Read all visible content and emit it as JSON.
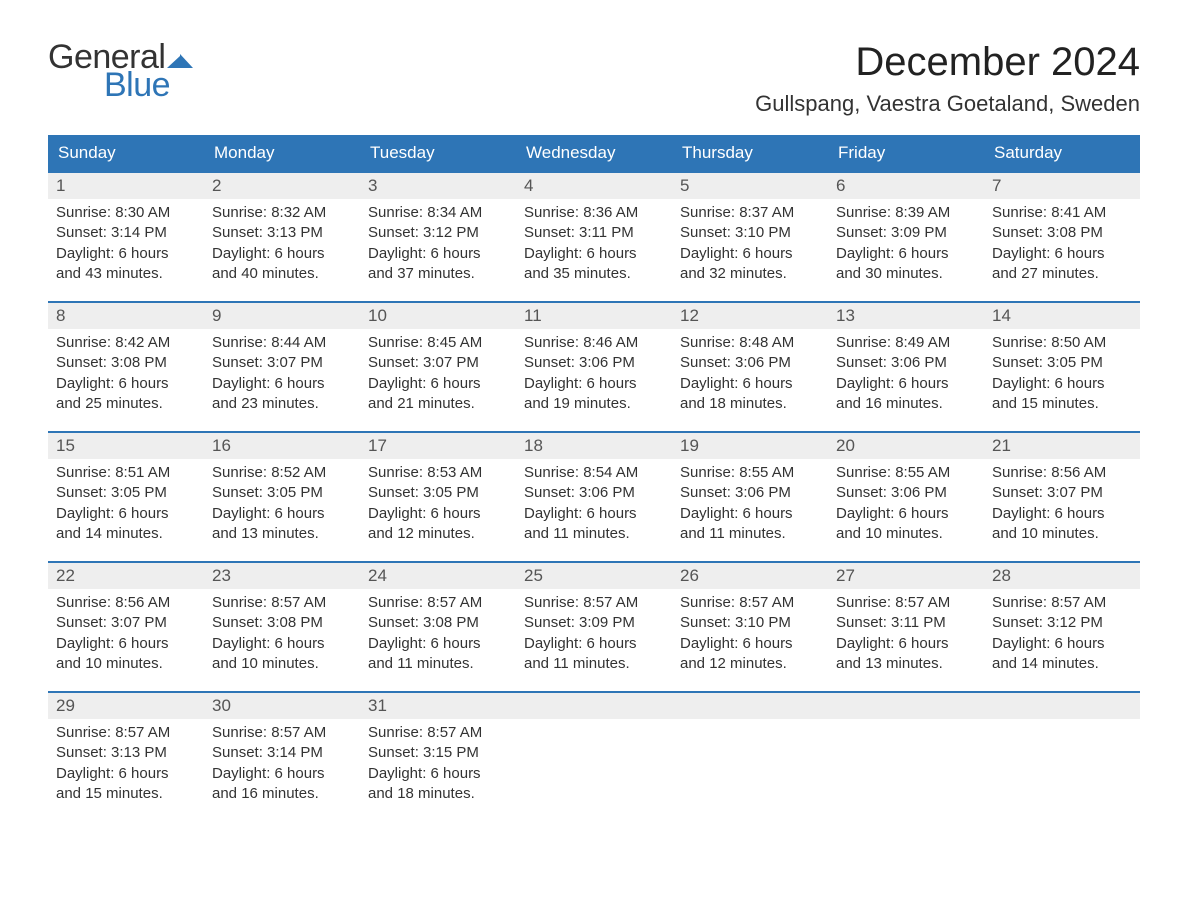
{
  "logo": {
    "text_general": "General",
    "text_blue": "Blue",
    "flag_color": "#2e75b6"
  },
  "title": "December 2024",
  "location": "Gullspang, Vaestra Goetaland, Sweden",
  "colors": {
    "header_bg": "#2e75b6",
    "header_text": "#ffffff",
    "daynum_bg": "#eeeeee",
    "row_border": "#2e75b6",
    "body_text": "#333333",
    "background": "#ffffff"
  },
  "font": {
    "family": "Arial",
    "title_size_pt": 30,
    "location_size_pt": 16,
    "header_size_pt": 13,
    "body_size_pt": 11
  },
  "weekdays": [
    "Sunday",
    "Monday",
    "Tuesday",
    "Wednesday",
    "Thursday",
    "Friday",
    "Saturday"
  ],
  "weeks": [
    [
      {
        "day": "1",
        "sunrise": "Sunrise: 8:30 AM",
        "sunset": "Sunset: 3:14 PM",
        "daylight1": "Daylight: 6 hours",
        "daylight2": "and 43 minutes."
      },
      {
        "day": "2",
        "sunrise": "Sunrise: 8:32 AM",
        "sunset": "Sunset: 3:13 PM",
        "daylight1": "Daylight: 6 hours",
        "daylight2": "and 40 minutes."
      },
      {
        "day": "3",
        "sunrise": "Sunrise: 8:34 AM",
        "sunset": "Sunset: 3:12 PM",
        "daylight1": "Daylight: 6 hours",
        "daylight2": "and 37 minutes."
      },
      {
        "day": "4",
        "sunrise": "Sunrise: 8:36 AM",
        "sunset": "Sunset: 3:11 PM",
        "daylight1": "Daylight: 6 hours",
        "daylight2": "and 35 minutes."
      },
      {
        "day": "5",
        "sunrise": "Sunrise: 8:37 AM",
        "sunset": "Sunset: 3:10 PM",
        "daylight1": "Daylight: 6 hours",
        "daylight2": "and 32 minutes."
      },
      {
        "day": "6",
        "sunrise": "Sunrise: 8:39 AM",
        "sunset": "Sunset: 3:09 PM",
        "daylight1": "Daylight: 6 hours",
        "daylight2": "and 30 minutes."
      },
      {
        "day": "7",
        "sunrise": "Sunrise: 8:41 AM",
        "sunset": "Sunset: 3:08 PM",
        "daylight1": "Daylight: 6 hours",
        "daylight2": "and 27 minutes."
      }
    ],
    [
      {
        "day": "8",
        "sunrise": "Sunrise: 8:42 AM",
        "sunset": "Sunset: 3:08 PM",
        "daylight1": "Daylight: 6 hours",
        "daylight2": "and 25 minutes."
      },
      {
        "day": "9",
        "sunrise": "Sunrise: 8:44 AM",
        "sunset": "Sunset: 3:07 PM",
        "daylight1": "Daylight: 6 hours",
        "daylight2": "and 23 minutes."
      },
      {
        "day": "10",
        "sunrise": "Sunrise: 8:45 AM",
        "sunset": "Sunset: 3:07 PM",
        "daylight1": "Daylight: 6 hours",
        "daylight2": "and 21 minutes."
      },
      {
        "day": "11",
        "sunrise": "Sunrise: 8:46 AM",
        "sunset": "Sunset: 3:06 PM",
        "daylight1": "Daylight: 6 hours",
        "daylight2": "and 19 minutes."
      },
      {
        "day": "12",
        "sunrise": "Sunrise: 8:48 AM",
        "sunset": "Sunset: 3:06 PM",
        "daylight1": "Daylight: 6 hours",
        "daylight2": "and 18 minutes."
      },
      {
        "day": "13",
        "sunrise": "Sunrise: 8:49 AM",
        "sunset": "Sunset: 3:06 PM",
        "daylight1": "Daylight: 6 hours",
        "daylight2": "and 16 minutes."
      },
      {
        "day": "14",
        "sunrise": "Sunrise: 8:50 AM",
        "sunset": "Sunset: 3:05 PM",
        "daylight1": "Daylight: 6 hours",
        "daylight2": "and 15 minutes."
      }
    ],
    [
      {
        "day": "15",
        "sunrise": "Sunrise: 8:51 AM",
        "sunset": "Sunset: 3:05 PM",
        "daylight1": "Daylight: 6 hours",
        "daylight2": "and 14 minutes."
      },
      {
        "day": "16",
        "sunrise": "Sunrise: 8:52 AM",
        "sunset": "Sunset: 3:05 PM",
        "daylight1": "Daylight: 6 hours",
        "daylight2": "and 13 minutes."
      },
      {
        "day": "17",
        "sunrise": "Sunrise: 8:53 AM",
        "sunset": "Sunset: 3:05 PM",
        "daylight1": "Daylight: 6 hours",
        "daylight2": "and 12 minutes."
      },
      {
        "day": "18",
        "sunrise": "Sunrise: 8:54 AM",
        "sunset": "Sunset: 3:06 PM",
        "daylight1": "Daylight: 6 hours",
        "daylight2": "and 11 minutes."
      },
      {
        "day": "19",
        "sunrise": "Sunrise: 8:55 AM",
        "sunset": "Sunset: 3:06 PM",
        "daylight1": "Daylight: 6 hours",
        "daylight2": "and 11 minutes."
      },
      {
        "day": "20",
        "sunrise": "Sunrise: 8:55 AM",
        "sunset": "Sunset: 3:06 PM",
        "daylight1": "Daylight: 6 hours",
        "daylight2": "and 10 minutes."
      },
      {
        "day": "21",
        "sunrise": "Sunrise: 8:56 AM",
        "sunset": "Sunset: 3:07 PM",
        "daylight1": "Daylight: 6 hours",
        "daylight2": "and 10 minutes."
      }
    ],
    [
      {
        "day": "22",
        "sunrise": "Sunrise: 8:56 AM",
        "sunset": "Sunset: 3:07 PM",
        "daylight1": "Daylight: 6 hours",
        "daylight2": "and 10 minutes."
      },
      {
        "day": "23",
        "sunrise": "Sunrise: 8:57 AM",
        "sunset": "Sunset: 3:08 PM",
        "daylight1": "Daylight: 6 hours",
        "daylight2": "and 10 minutes."
      },
      {
        "day": "24",
        "sunrise": "Sunrise: 8:57 AM",
        "sunset": "Sunset: 3:08 PM",
        "daylight1": "Daylight: 6 hours",
        "daylight2": "and 11 minutes."
      },
      {
        "day": "25",
        "sunrise": "Sunrise: 8:57 AM",
        "sunset": "Sunset: 3:09 PM",
        "daylight1": "Daylight: 6 hours",
        "daylight2": "and 11 minutes."
      },
      {
        "day": "26",
        "sunrise": "Sunrise: 8:57 AM",
        "sunset": "Sunset: 3:10 PM",
        "daylight1": "Daylight: 6 hours",
        "daylight2": "and 12 minutes."
      },
      {
        "day": "27",
        "sunrise": "Sunrise: 8:57 AM",
        "sunset": "Sunset: 3:11 PM",
        "daylight1": "Daylight: 6 hours",
        "daylight2": "and 13 minutes."
      },
      {
        "day": "28",
        "sunrise": "Sunrise: 8:57 AM",
        "sunset": "Sunset: 3:12 PM",
        "daylight1": "Daylight: 6 hours",
        "daylight2": "and 14 minutes."
      }
    ],
    [
      {
        "day": "29",
        "sunrise": "Sunrise: 8:57 AM",
        "sunset": "Sunset: 3:13 PM",
        "daylight1": "Daylight: 6 hours",
        "daylight2": "and 15 minutes."
      },
      {
        "day": "30",
        "sunrise": "Sunrise: 8:57 AM",
        "sunset": "Sunset: 3:14 PM",
        "daylight1": "Daylight: 6 hours",
        "daylight2": "and 16 minutes."
      },
      {
        "day": "31",
        "sunrise": "Sunrise: 8:57 AM",
        "sunset": "Sunset: 3:15 PM",
        "daylight1": "Daylight: 6 hours",
        "daylight2": "and 18 minutes."
      },
      null,
      null,
      null,
      null
    ]
  ]
}
